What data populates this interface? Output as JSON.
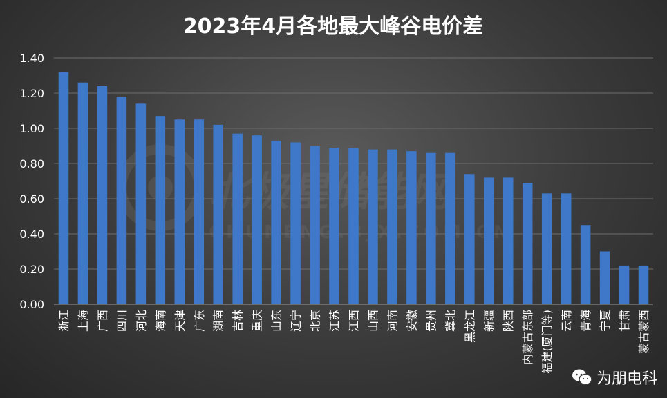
{
  "chart_data": {
    "type": "bar",
    "title": "2023年4月各地最大峰谷电价差",
    "categories": [
      "浙江",
      "上海",
      "广西",
      "四川",
      "河北",
      "海南",
      "天津",
      "广东",
      "湖南",
      "吉林",
      "重庆",
      "山东",
      "辽宁",
      "北京",
      "江苏",
      "江西",
      "山西",
      "河南",
      "安徽",
      "贵州",
      "冀北",
      "黑龙江",
      "新疆",
      "陕西",
      "内蒙古东部",
      "福建(厦门等)",
      "云南",
      "青海",
      "宁夏",
      "甘肃",
      "蒙古蒙西"
    ],
    "values": [
      1.32,
      1.26,
      1.24,
      1.18,
      1.14,
      1.07,
      1.05,
      1.05,
      1.02,
      0.97,
      0.96,
      0.93,
      0.92,
      0.9,
      0.89,
      0.89,
      0.88,
      0.88,
      0.87,
      0.86,
      0.86,
      0.74,
      0.72,
      0.72,
      0.69,
      0.63,
      0.63,
      0.45,
      0.3,
      0.22,
      0.22
    ],
    "yticks": [
      "0.00",
      "0.20",
      "0.40",
      "0.60",
      "0.80",
      "1.00",
      "1.20",
      "1.40"
    ],
    "ylim": [
      0,
      1.4
    ],
    "grid": true,
    "bar_color": "#3f78c8"
  },
  "watermark": {
    "main": "北极星储能网",
    "sub": "CHUNENG.BJX.COM.CN"
  },
  "credit": {
    "icon": "wechat-icon",
    "text": "为朋电科"
  }
}
